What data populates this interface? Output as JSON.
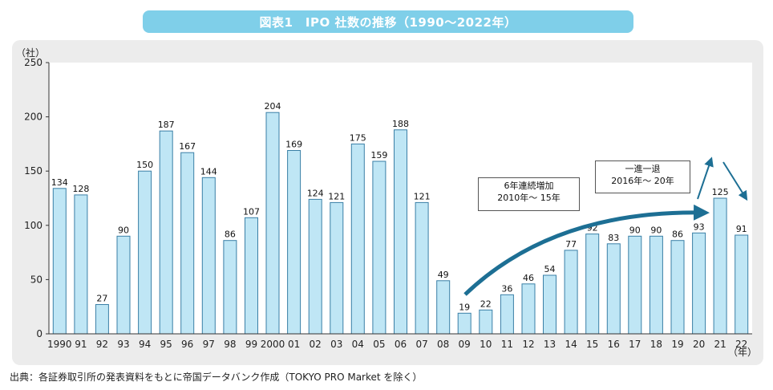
{
  "header": {
    "title": "図表1　IPO 社数の推移（1990〜2022年）"
  },
  "footer": {
    "source": "出典：各証券取引所の発表資料をもとに帝国データバンク作成（TOKYO PRO Market を除く）"
  },
  "annotations": {
    "box1": {
      "line1": "6年連続増加",
      "line2": "2010年〜 15年"
    },
    "box2": {
      "line1": "一進一退",
      "line2": "2016年〜 20年"
    }
  },
  "colors": {
    "bar_fill": "#bfe6f5",
    "bar_stroke": "#3a7fa6",
    "arrow": "#1d6f94",
    "title_bg": "#7fcfe9",
    "panel_bg": "#ececec"
  },
  "chart_data": {
    "type": "bar",
    "categories": [
      "1990",
      "91",
      "92",
      "93",
      "94",
      "95",
      "96",
      "97",
      "98",
      "99",
      "2000",
      "01",
      "02",
      "03",
      "04",
      "05",
      "06",
      "07",
      "08",
      "09",
      "10",
      "11",
      "12",
      "13",
      "14",
      "15",
      "16",
      "17",
      "18",
      "19",
      "20",
      "21",
      "22"
    ],
    "values": [
      134,
      128,
      27,
      90,
      150,
      187,
      167,
      144,
      86,
      107,
      204,
      169,
      124,
      121,
      175,
      159,
      188,
      121,
      49,
      19,
      22,
      36,
      46,
      54,
      77,
      92,
      83,
      90,
      90,
      86,
      93,
      125,
      91
    ],
    "ylabel": "（社）",
    "xlabel": "（年）",
    "yticks": [
      0,
      50,
      100,
      150,
      200,
      250
    ],
    "ylim": [
      0,
      250
    ],
    "grid": false
  }
}
